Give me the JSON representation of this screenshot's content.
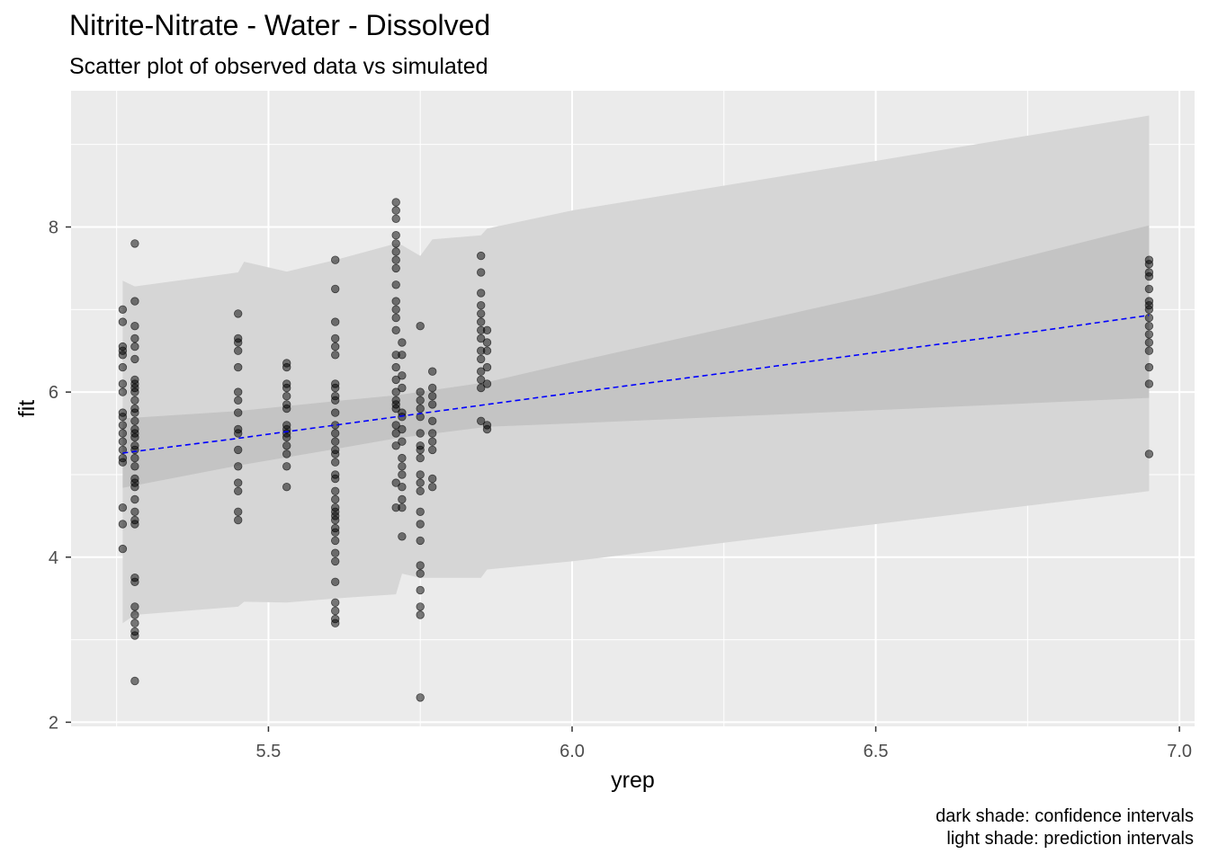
{
  "chart_data": {
    "type": "scatter",
    "title": "Nitrite-Nitrate - Water - Dissolved",
    "subtitle": "Scatter plot of observed data vs simulated",
    "xlabel": "yrep",
    "ylabel": "fit",
    "xlim": [
      5.175,
      7.025
    ],
    "ylim": [
      1.95,
      9.65
    ],
    "x_ticks": [
      5.5,
      6.0,
      6.5,
      7.0
    ],
    "x_tick_labels": [
      "5.5",
      "6.0",
      "6.5",
      "7.0"
    ],
    "y_ticks": [
      2,
      4,
      6,
      8
    ],
    "y_tick_labels": [
      "2",
      "4",
      "6",
      "8"
    ],
    "grid": true,
    "colors": {
      "panel": "#ebebeb",
      "grid": "#ffffff",
      "points": "#000000",
      "fit_line": "#0000ff",
      "confidence_band": "#bebebe",
      "prediction_band": "#d6d6d6"
    },
    "captions": [
      "dark shade: confidence intervals",
      "light shade: prediction intervals"
    ],
    "fit_line": {
      "style": "dashed",
      "x": [
        5.26,
        5.28,
        5.45,
        5.53,
        5.61,
        5.71,
        5.76,
        5.86,
        6.0,
        6.25,
        6.5,
        6.75,
        6.95
      ],
      "y": [
        5.26,
        5.28,
        5.44,
        5.52,
        5.6,
        5.7,
        5.75,
        5.85,
        5.99,
        6.23,
        6.48,
        6.72,
        6.93
      ]
    },
    "confidence_band": {
      "x": [
        5.26,
        5.45,
        5.61,
        5.71,
        5.86,
        6.0,
        6.5,
        6.95
      ],
      "lower": [
        4.84,
        5.11,
        5.31,
        5.44,
        5.58,
        5.62,
        5.78,
        5.93
      ],
      "upper": [
        5.68,
        5.77,
        5.89,
        5.96,
        6.12,
        6.36,
        7.18,
        8.02
      ]
    },
    "prediction_band": {
      "x": [
        5.26,
        5.28,
        5.45,
        5.46,
        5.53,
        5.61,
        5.71,
        5.72,
        5.75,
        5.77,
        5.85,
        5.86,
        6.0,
        6.5,
        6.95
      ],
      "lower": [
        3.2,
        3.3,
        3.4,
        3.46,
        3.45,
        3.5,
        3.55,
        3.8,
        3.75,
        3.75,
        3.75,
        3.85,
        3.95,
        4.4,
        4.8
      ],
      "upper": [
        7.35,
        7.28,
        7.45,
        7.58,
        7.46,
        7.6,
        7.8,
        7.78,
        7.65,
        7.85,
        7.9,
        7.98,
        8.2,
        8.8,
        9.35
      ]
    },
    "points": [
      {
        "x": 5.26,
        "y": [
          4.1,
          4.4,
          4.6,
          5.15,
          5.2,
          5.3,
          5.4,
          5.5,
          5.6,
          5.7,
          5.75,
          6.0,
          6.1,
          6.3,
          6.45,
          6.5,
          6.55,
          6.85,
          7.0
        ]
      },
      {
        "x": 5.28,
        "y": [
          2.5,
          3.05,
          3.1,
          3.2,
          3.3,
          3.4,
          3.7,
          3.75,
          4.4,
          4.45,
          4.55,
          4.7,
          4.85,
          4.9,
          4.95,
          5.1,
          5.2,
          5.3,
          5.35,
          5.45,
          5.5,
          5.55,
          5.65,
          5.75,
          5.8,
          5.9,
          6.0,
          6.05,
          6.1,
          6.15,
          6.4,
          6.55,
          6.65,
          6.8,
          7.1,
          7.8
        ]
      },
      {
        "x": 5.45,
        "y": [
          4.45,
          4.55,
          4.8,
          4.9,
          5.1,
          5.3,
          5.5,
          5.55,
          5.75,
          5.9,
          6.0,
          6.3,
          6.5,
          6.6,
          6.65,
          6.95
        ]
      },
      {
        "x": 5.53,
        "y": [
          4.85,
          5.1,
          5.25,
          5.35,
          5.45,
          5.5,
          5.55,
          5.6,
          5.8,
          5.85,
          5.95,
          6.05,
          6.1,
          6.3,
          6.35
        ]
      },
      {
        "x": 5.61,
        "y": [
          3.2,
          3.25,
          3.35,
          3.45,
          3.7,
          3.95,
          4.05,
          4.2,
          4.3,
          4.35,
          4.45,
          4.5,
          4.55,
          4.6,
          4.7,
          4.8,
          4.95,
          5.0,
          5.15,
          5.25,
          5.3,
          5.4,
          5.5,
          5.6,
          5.75,
          5.9,
          5.95,
          6.05,
          6.1,
          6.45,
          6.55,
          6.65,
          6.85,
          7.25,
          7.6
        ]
      },
      {
        "x": 5.71,
        "y": [
          4.6,
          4.9,
          5.35,
          5.5,
          5.6,
          5.8,
          5.85,
          5.9,
          6.0,
          6.15,
          6.3,
          6.45,
          6.75,
          6.9,
          7.0,
          7.1,
          7.3,
          7.5,
          7.6,
          7.7,
          7.8,
          7.9,
          8.1,
          8.2,
          8.3
        ]
      },
      {
        "x": 5.72,
        "y": [
          4.25,
          4.6,
          4.7,
          4.85,
          5.0,
          5.1,
          5.2,
          5.4,
          5.55,
          5.7,
          5.75,
          6.05,
          6.2,
          6.45,
          6.6
        ]
      },
      {
        "x": 5.75,
        "y": [
          2.3,
          3.3,
          3.4,
          3.6,
          3.8,
          3.9,
          4.2,
          4.4,
          4.55,
          4.8,
          4.9,
          5.0,
          5.2,
          5.3,
          5.35,
          5.5,
          5.7,
          5.8,
          5.9,
          6.0,
          6.8
        ]
      },
      {
        "x": 5.77,
        "y": [
          4.85,
          4.95,
          5.3,
          5.4,
          5.5,
          5.65,
          5.85,
          5.95,
          6.05,
          6.25
        ]
      },
      {
        "x": 5.85,
        "y": [
          5.65,
          6.05,
          6.15,
          6.25,
          6.4,
          6.5,
          6.65,
          6.75,
          6.85,
          6.95,
          7.05,
          7.2,
          7.45,
          7.65
        ]
      },
      {
        "x": 5.86,
        "y": [
          5.55,
          5.6,
          6.1,
          6.3,
          6.5,
          6.6,
          6.75
        ]
      },
      {
        "x": 6.95,
        "y": [
          5.25,
          6.1,
          6.3,
          6.5,
          6.6,
          6.7,
          6.8,
          6.9,
          7.0,
          7.05,
          7.1,
          7.25,
          7.4,
          7.45,
          7.55,
          7.6
        ]
      }
    ]
  }
}
